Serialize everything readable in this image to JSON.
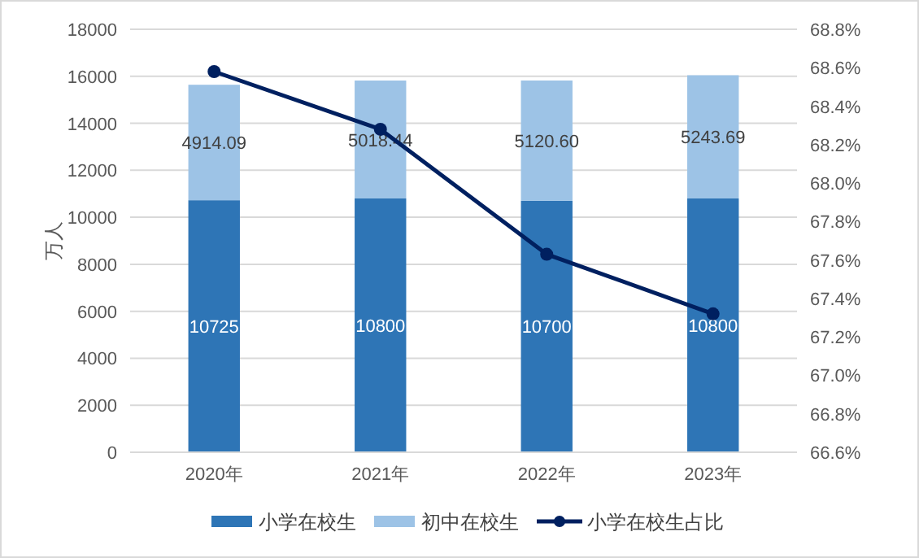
{
  "chart_data": {
    "type": "bar",
    "stacked": true,
    "ylabel": "万人",
    "categories": [
      "2020年",
      "2021年",
      "2022年",
      "2023年"
    ],
    "series": [
      {
        "name": "小学在校生",
        "color": "#2e75b6",
        "values": [
          10725,
          10800,
          10700,
          10800
        ],
        "value_labels": [
          "10725",
          "10800",
          "10700",
          "10800"
        ]
      },
      {
        "name": "初中在校生",
        "color": "#9dc3e6",
        "values": [
          4914.09,
          5018.44,
          5120.6,
          5243.69
        ],
        "value_labels": [
          "4914.09",
          "5018.44",
          "5120.60",
          "5243.69"
        ]
      },
      {
        "name": "小学在校生占比",
        "type": "line",
        "axis": "y2",
        "color": "#002060",
        "values": [
          68.58,
          68.28,
          67.63,
          67.32
        ]
      }
    ],
    "marker": "circle",
    "ylim": [
      0,
      18000
    ],
    "yticks": [
      0,
      2000,
      4000,
      6000,
      8000,
      10000,
      12000,
      14000,
      16000,
      18000
    ],
    "y2lim": [
      66.6,
      68.8
    ],
    "y2ticks": [
      {
        "value": 66.6,
        "label": "66.6%"
      },
      {
        "value": 66.8,
        "label": "66.8%"
      },
      {
        "value": 67.0,
        "label": "67.0%"
      },
      {
        "value": 67.2,
        "label": "67.2%"
      },
      {
        "value": 67.4,
        "label": "67.4%"
      },
      {
        "value": 67.6,
        "label": "67.6%"
      },
      {
        "value": 67.8,
        "label": "67.8%"
      },
      {
        "value": 68.0,
        "label": "68.0%"
      },
      {
        "value": 68.2,
        "label": "68.2%"
      },
      {
        "value": 68.4,
        "label": "68.4%"
      },
      {
        "value": 68.6,
        "label": "68.6%"
      },
      {
        "value": 68.8,
        "label": "68.8%"
      }
    ],
    "grid": "y",
    "legend": "bottom"
  }
}
